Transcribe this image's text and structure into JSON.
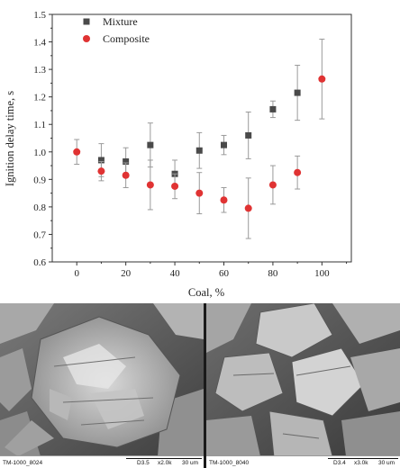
{
  "chart_data": {
    "type": "scatter",
    "xlabel": "Coal, %",
    "ylabel": "Ignition delay time, s",
    "xlim": [
      -10,
      112
    ],
    "ylim": [
      0.6,
      1.5
    ],
    "x_ticks": [
      "0",
      "20",
      "40",
      "60",
      "80",
      "100"
    ],
    "y_ticks": [
      "0.6",
      "0.7",
      "0.8",
      "0.9",
      "1.0",
      "1.1",
      "1.2",
      "1.3",
      "1.4",
      "1.5"
    ],
    "legend_position": "top-left",
    "series": [
      {
        "name": "Mixture",
        "marker": "square",
        "color": "#4a4a4a",
        "points": [
          {
            "x": 10,
            "y": 0.97,
            "err": 0.06
          },
          {
            "x": 20,
            "y": 0.965,
            "err": 0.05
          },
          {
            "x": 30,
            "y": 1.025,
            "err": 0.08
          },
          {
            "x": 40,
            "y": 0.92,
            "err": 0.05
          },
          {
            "x": 50,
            "y": 1.005,
            "err": 0.065
          },
          {
            "x": 60,
            "y": 1.025,
            "err": 0.035
          },
          {
            "x": 70,
            "y": 1.06,
            "err": 0.085
          },
          {
            "x": 80,
            "y": 1.155,
            "err": 0.03
          },
          {
            "x": 90,
            "y": 1.215,
            "err": 0.1
          }
        ]
      },
      {
        "name": "Composite",
        "marker": "circle",
        "color": "#e03333",
        "points": [
          {
            "x": 0,
            "y": 1.0,
            "err": 0.045
          },
          {
            "x": 10,
            "y": 0.93,
            "err": 0.035
          },
          {
            "x": 20,
            "y": 0.915,
            "err": 0.045
          },
          {
            "x": 30,
            "y": 0.88,
            "err": 0.09
          },
          {
            "x": 40,
            "y": 0.875,
            "err": 0.045
          },
          {
            "x": 50,
            "y": 0.85,
            "err": 0.075
          },
          {
            "x": 60,
            "y": 0.825,
            "err": 0.045
          },
          {
            "x": 70,
            "y": 0.795,
            "err": 0.11
          },
          {
            "x": 80,
            "y": 0.88,
            "err": 0.07
          },
          {
            "x": 90,
            "y": 0.925,
            "err": 0.06
          },
          {
            "x": 100,
            "y": 1.265,
            "err": 0.145
          }
        ]
      }
    ]
  },
  "images": [
    {
      "id_text": "TM-1000_8024",
      "params": "D3.5",
      "mag": "x2.0k",
      "scale": "30 um"
    },
    {
      "id_text": "TM-1000_8040",
      "params": "D3.4",
      "mag": "x3.0k",
      "scale": "30 um"
    }
  ]
}
